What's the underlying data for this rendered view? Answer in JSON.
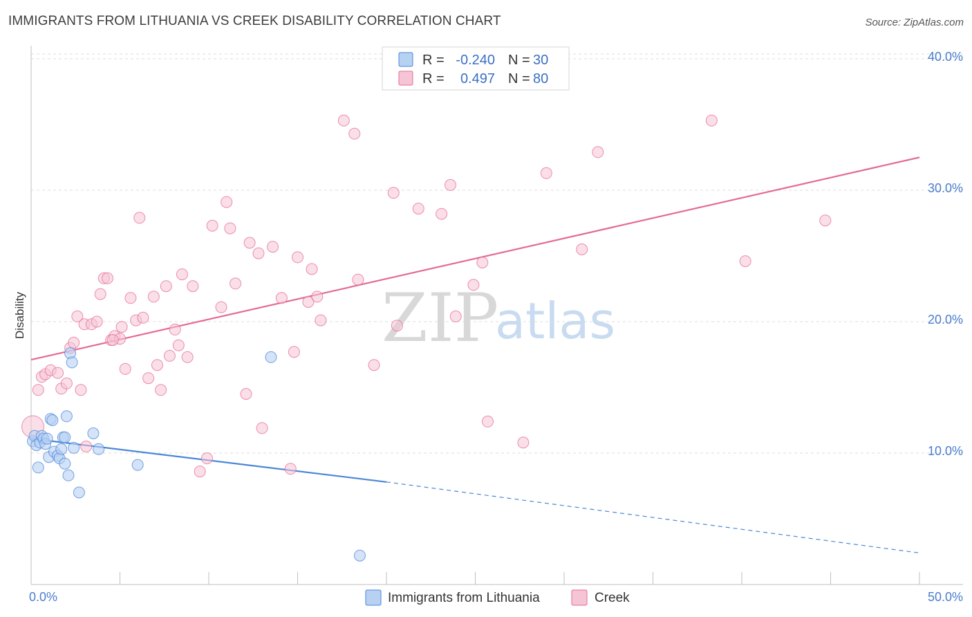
{
  "title": "IMMIGRANTS FROM LITHUANIA VS CREEK DISABILITY CORRELATION CHART",
  "source": "Source: ZipAtlas.com",
  "colors": {
    "blue": "#4a86d8",
    "blue_fill": "#b7d1f3",
    "pink": "#e46a95",
    "pink_fill": "#f6c5d5",
    "axis_label": "#4a7ccc"
  },
  "legend": {
    "rows": [
      {
        "r_label": "R =",
        "r_value": "-0.240",
        "n_label": "N =",
        "n_value": "30"
      },
      {
        "r_label": "R =",
        "r_value": "0.497",
        "n_label": "N =",
        "n_value": "80"
      }
    ]
  },
  "watermark": {
    "zip": "ZIP",
    "atlas": "atlas"
  },
  "chart_data": {
    "type": "scatter",
    "title": "IMMIGRANTS FROM LITHUANIA VS CREEK DISABILITY CORRELATION CHART",
    "xlabel": "",
    "ylabel": "Disability",
    "xlim": [
      0,
      50
    ],
    "ylim": [
      0,
      41
    ],
    "x_tick_labels": {
      "min": "0.0%",
      "max": "50.0%"
    },
    "y_ticks": [
      {
        "value": 10,
        "label": "10.0%"
      },
      {
        "value": 20,
        "label": "20.0%"
      },
      {
        "value": 30,
        "label": "30.0%"
      },
      {
        "value": 40,
        "label": "40.0%"
      }
    ],
    "series": [
      {
        "name": "Immigrants from Lithuania",
        "color": "blue",
        "R": -0.24,
        "N": 30,
        "trend": {
          "x0": 0,
          "y0": 11.1,
          "x1": 20,
          "y1": 7.8,
          "dash_to_x": 50,
          "dash_to_y": 2.4
        },
        "points": [
          [
            0.1,
            10.9
          ],
          [
            0.2,
            11.3
          ],
          [
            0.3,
            10.6
          ],
          [
            0.5,
            10.8
          ],
          [
            0.6,
            11.3
          ],
          [
            0.7,
            11.1
          ],
          [
            0.8,
            10.7
          ],
          [
            0.9,
            11.1
          ],
          [
            1.0,
            9.7
          ],
          [
            1.1,
            12.6
          ],
          [
            1.2,
            12.5
          ],
          [
            1.3,
            10.1
          ],
          [
            1.5,
            9.8
          ],
          [
            1.6,
            9.6
          ],
          [
            1.7,
            10.3
          ],
          [
            1.8,
            11.2
          ],
          [
            1.9,
            11.2
          ],
          [
            1.9,
            9.2
          ],
          [
            2.0,
            12.8
          ],
          [
            2.1,
            8.3
          ],
          [
            2.2,
            17.6
          ],
          [
            2.3,
            16.9
          ],
          [
            2.4,
            10.4
          ],
          [
            2.7,
            7.0
          ],
          [
            3.5,
            11.5
          ],
          [
            3.8,
            10.3
          ],
          [
            6.0,
            9.1
          ],
          [
            13.5,
            17.3
          ],
          [
            18.5,
            2.2
          ],
          [
            0.4,
            8.9
          ]
        ]
      },
      {
        "name": "Creek",
        "color": "pink",
        "R": 0.497,
        "N": 80,
        "trend": {
          "x0": 0,
          "y0": 17.1,
          "x1": 50,
          "y1": 32.5
        },
        "points": [
          [
            0.1,
            12.0
          ],
          [
            0.4,
            14.8
          ],
          [
            0.6,
            15.8
          ],
          [
            0.8,
            16.0
          ],
          [
            1.1,
            16.3
          ],
          [
            1.5,
            16.1
          ],
          [
            1.7,
            14.9
          ],
          [
            2.0,
            15.3
          ],
          [
            2.2,
            18.0
          ],
          [
            2.4,
            18.4
          ],
          [
            2.6,
            20.4
          ],
          [
            2.8,
            14.8
          ],
          [
            3.0,
            19.8
          ],
          [
            3.1,
            10.5
          ],
          [
            3.4,
            19.8
          ],
          [
            3.7,
            20.0
          ],
          [
            3.9,
            22.1
          ],
          [
            4.1,
            23.3
          ],
          [
            4.3,
            23.3
          ],
          [
            4.5,
            18.6
          ],
          [
            4.7,
            18.9
          ],
          [
            5.0,
            18.7
          ],
          [
            5.1,
            19.6
          ],
          [
            5.3,
            16.4
          ],
          [
            5.6,
            21.8
          ],
          [
            5.9,
            20.1
          ],
          [
            6.1,
            27.9
          ],
          [
            6.3,
            20.3
          ],
          [
            6.6,
            15.7
          ],
          [
            6.9,
            21.9
          ],
          [
            7.1,
            16.7
          ],
          [
            7.3,
            14.8
          ],
          [
            7.6,
            22.7
          ],
          [
            7.8,
            17.4
          ],
          [
            8.1,
            19.4
          ],
          [
            8.3,
            18.2
          ],
          [
            8.5,
            23.6
          ],
          [
            8.8,
            17.3
          ],
          [
            9.1,
            22.7
          ],
          [
            9.5,
            8.6
          ],
          [
            9.9,
            9.6
          ],
          [
            10.2,
            27.3
          ],
          [
            10.7,
            21.1
          ],
          [
            11.0,
            29.1
          ],
          [
            11.2,
            27.1
          ],
          [
            11.5,
            22.9
          ],
          [
            12.1,
            14.5
          ],
          [
            12.3,
            26.0
          ],
          [
            12.8,
            25.2
          ],
          [
            13.0,
            11.9
          ],
          [
            13.6,
            25.7
          ],
          [
            14.1,
            21.8
          ],
          [
            14.6,
            8.8
          ],
          [
            14.8,
            17.7
          ],
          [
            15.0,
            24.9
          ],
          [
            15.6,
            21.5
          ],
          [
            15.8,
            24.0
          ],
          [
            16.1,
            21.9
          ],
          [
            16.3,
            20.1
          ],
          [
            17.6,
            35.3
          ],
          [
            18.2,
            34.3
          ],
          [
            18.4,
            23.2
          ],
          [
            19.3,
            16.7
          ],
          [
            20.4,
            29.8
          ],
          [
            20.6,
            19.7
          ],
          [
            21.8,
            28.6
          ],
          [
            23.1,
            28.2
          ],
          [
            23.6,
            30.4
          ],
          [
            23.9,
            20.4
          ],
          [
            24.9,
            22.8
          ],
          [
            25.4,
            24.5
          ],
          [
            25.7,
            12.4
          ],
          [
            27.7,
            10.8
          ],
          [
            29.0,
            31.3
          ],
          [
            31.0,
            25.5
          ],
          [
            31.9,
            32.9
          ],
          [
            38.3,
            35.3
          ],
          [
            40.2,
            24.6
          ],
          [
            44.7,
            27.7
          ],
          [
            4.6,
            18.6
          ]
        ]
      }
    ]
  },
  "bottom_legend": [
    {
      "label": "Immigrants from Lithuania",
      "color": "blue"
    },
    {
      "label": "Creek",
      "color": "pink"
    }
  ]
}
